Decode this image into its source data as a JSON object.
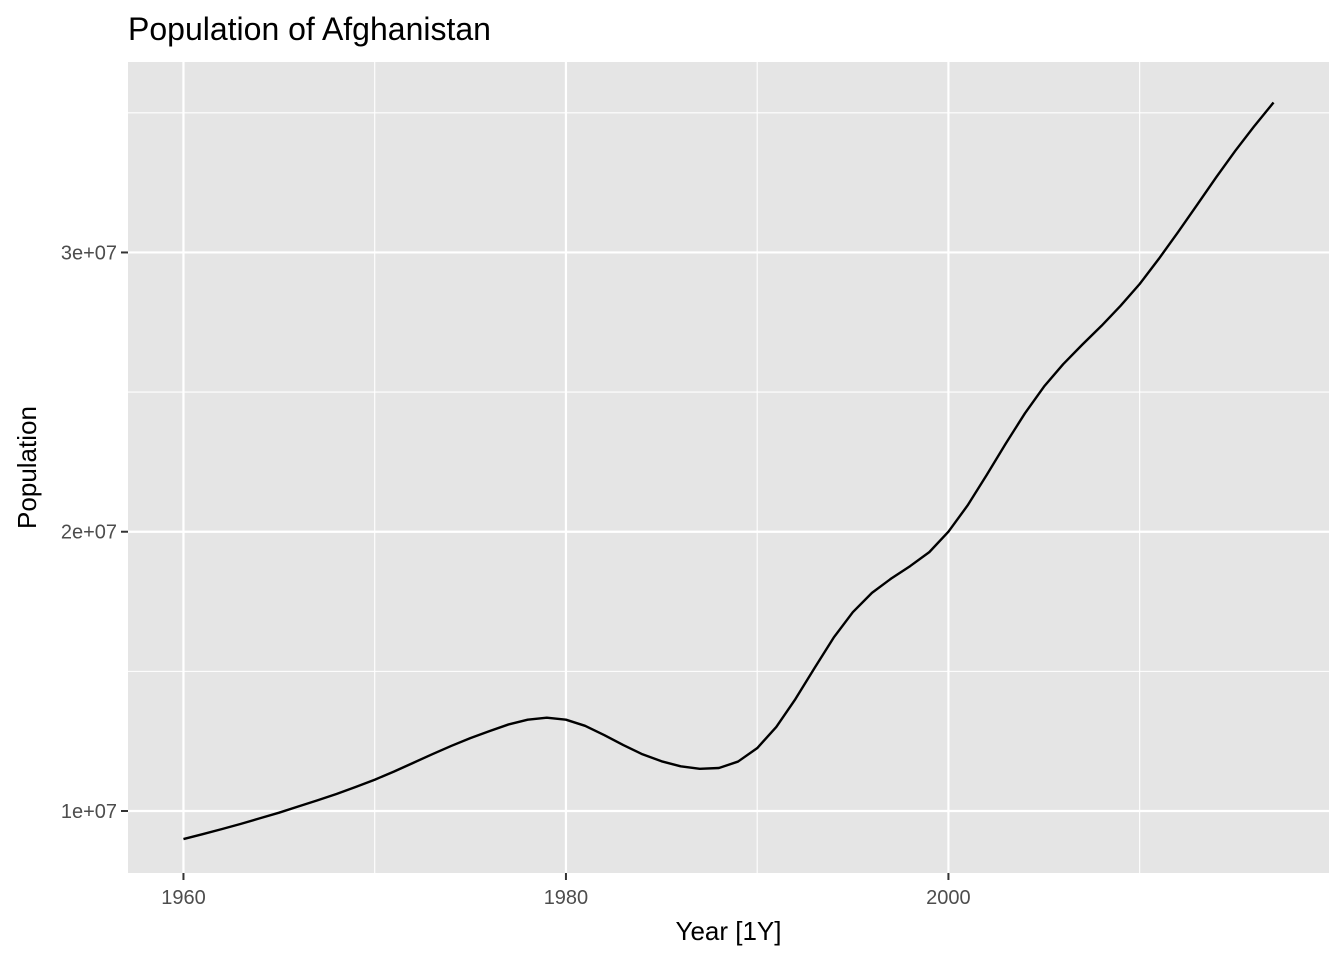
{
  "chart_data": {
    "type": "line",
    "title": "Population of Afghanistan",
    "xlabel": "Year [1Y]",
    "ylabel": "Population",
    "xlim": [
      1957.1,
      2019.9
    ],
    "ylim": [
      7780000,
      36820000
    ],
    "x_ticks": [
      1960,
      1980,
      2000
    ],
    "x_tick_labels": [
      "1960",
      "1980",
      "2000"
    ],
    "x_minor_ticks": [
      1970,
      1990,
      2010
    ],
    "y_ticks": [
      10000000,
      20000000,
      30000000
    ],
    "y_tick_labels": [
      "1e+07",
      "2e+07",
      "3e+07"
    ],
    "y_minor_ticks": [
      15000000,
      25000000,
      35000000
    ],
    "grid": true,
    "legend": "none",
    "colors": {
      "panel": "#E5E5E5",
      "grid": "#FFFFFF",
      "line": "#000000",
      "tick_label": "#4D4D4D",
      "tick": "#333333"
    },
    "series": [
      {
        "x": [
          1960,
          1961,
          1962,
          1963,
          1964,
          1965,
          1966,
          1967,
          1968,
          1969,
          1970,
          1971,
          1972,
          1973,
          1974,
          1975,
          1976,
          1977,
          1978,
          1979,
          1980,
          1981,
          1982,
          1983,
          1984,
          1985,
          1986,
          1987,
          1988,
          1989,
          1990,
          1991,
          1992,
          1993,
          1994,
          1995,
          1996,
          1997,
          1998,
          1999,
          2000,
          2001,
          2002,
          2003,
          2004,
          2005,
          2006,
          2007,
          2008,
          2009,
          2010,
          2011,
          2012,
          2013,
          2014,
          2015,
          2016,
          2017
        ],
        "values": [
          8996000,
          9170000,
          9350000,
          9540000,
          9740000,
          9940000,
          10160000,
          10380000,
          10610000,
          10860000,
          11120000,
          11410000,
          11720000,
          12030000,
          12330000,
          12610000,
          12860000,
          13100000,
          13270000,
          13340000,
          13270000,
          13050000,
          12720000,
          12360000,
          12030000,
          11780000,
          11600000,
          11510000,
          11540000,
          11770000,
          12250000,
          13010000,
          14010000,
          15120000,
          16210000,
          17120000,
          17810000,
          18320000,
          18770000,
          19270000,
          20000000,
          20940000,
          22030000,
          23160000,
          24240000,
          25200000,
          26000000,
          26700000,
          27370000,
          28090000,
          28870000,
          29770000,
          30720000,
          31700000,
          32690000,
          33640000,
          34530000,
          35370000
        ]
      }
    ]
  }
}
